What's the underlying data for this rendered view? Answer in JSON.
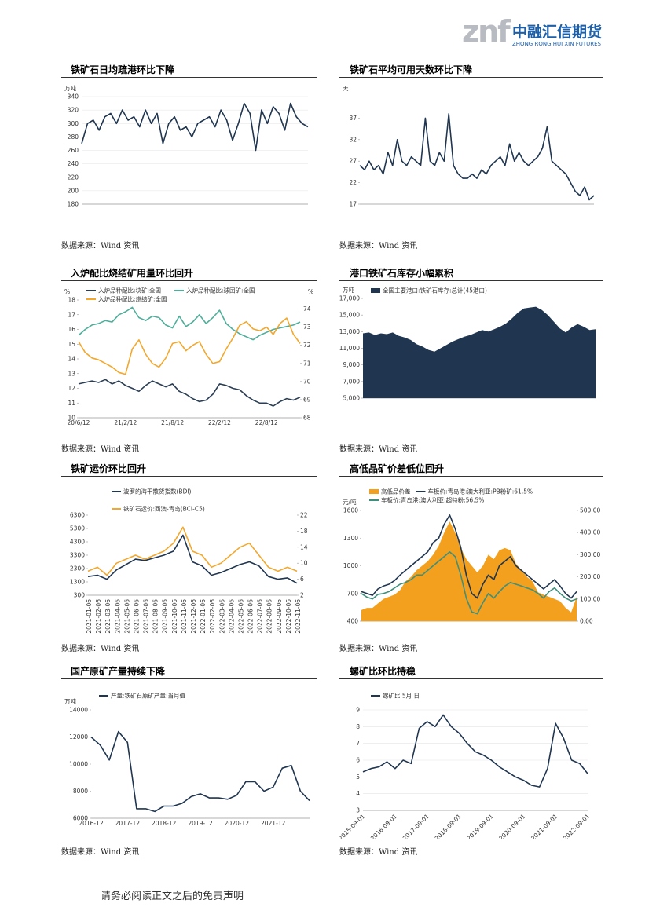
{
  "header": {
    "logo_mark": "znf",
    "company": "中融汇信期货",
    "company_en": "ZHONG RONG HUI XIN FUTURES"
  },
  "sections": [
    {
      "title": "铁矿石日均疏港环比下降",
      "source": "数据来源：Wind 资讯"
    },
    {
      "title": "铁矿石平均可用天数环比下降",
      "source": "数据来源：Wind 资讯"
    },
    {
      "title": "入炉配比烧结矿用量环比回升",
      "source": "数据来源：Wind 资讯"
    },
    {
      "title": "港口铁矿石库存小幅累积",
      "source": "数据来源：Wind 资讯"
    },
    {
      "title": "铁矿运价环比回升",
      "source": "数据来源：Wind 资讯"
    },
    {
      "title": "高低品矿价差低位回升",
      "source": "数据来源：Wind 资讯"
    },
    {
      "title": "国产原矿产量持续下降",
      "source": "数据来源：Wind 资讯"
    },
    {
      "title": "螺矿比环比持稳",
      "source": "数据来源：Wind 资讯"
    }
  ],
  "footer": "请务必阅读正文之后的免责声明",
  "chart_data": [
    {
      "type": "line",
      "unit": "万吨",
      "grid": true,
      "ylim": [
        180,
        340
      ],
      "yticks": [
        180,
        200,
        220,
        240,
        260,
        280,
        300,
        320,
        340
      ],
      "series": [
        {
          "color": "#1f3550",
          "values": [
            270,
            300,
            305,
            290,
            310,
            315,
            300,
            320,
            305,
            310,
            295,
            320,
            300,
            315,
            270,
            300,
            310,
            290,
            295,
            280,
            300,
            305,
            310,
            295,
            320,
            305,
            275,
            300,
            330,
            315,
            260,
            320,
            300,
            325,
            315,
            290,
            330,
            310,
            300,
            295
          ]
        }
      ]
    },
    {
      "type": "line",
      "unit": "天",
      "grid": false,
      "ylim": [
        17,
        42
      ],
      "yticks": [
        17,
        22,
        27,
        32,
        37
      ],
      "series": [
        {
          "color": "#1f3550",
          "values": [
            26,
            25,
            27,
            25,
            26,
            24,
            29,
            26,
            32,
            27,
            26,
            28,
            27,
            26,
            37,
            27,
            26,
            29,
            27,
            38,
            26,
            24,
            23,
            23,
            24,
            23,
            25,
            24,
            26,
            27,
            28,
            26,
            31,
            27,
            29,
            27,
            26,
            27,
            28,
            30,
            35,
            27,
            26,
            25,
            24,
            22,
            20,
            19,
            21,
            18,
            19
          ]
        }
      ]
    },
    {
      "type": "line",
      "unit": "%",
      "unit2": "%",
      "grid": false,
      "ylim": [
        10,
        18
      ],
      "yticks": [
        10,
        11,
        12,
        13,
        14,
        15,
        16,
        17,
        18
      ],
      "y2lim": [
        68,
        74.5
      ],
      "y2ticks": [
        68,
        69,
        70,
        71,
        72,
        73,
        74
      ],
      "categories": [
        "20/6/12",
        null,
        null,
        null,
        null,
        null,
        null,
        "21/2/12",
        null,
        null,
        null,
        null,
        null,
        null,
        "21/8/12",
        null,
        null,
        null,
        null,
        null,
        null,
        "22/2/12",
        null,
        null,
        null,
        null,
        null,
        null,
        "22/8/12",
        null,
        null,
        null,
        null,
        null
      ],
      "series": [
        {
          "name": "入炉品种配比:块矿:全国",
          "color": "#2b3e55",
          "values": [
            12.3,
            12.4,
            12.5,
            12.4,
            12.6,
            12.3,
            12.5,
            12.2,
            12.0,
            11.8,
            12.2,
            12.5,
            12.3,
            12.1,
            12.3,
            11.8,
            11.6,
            11.3,
            11.1,
            11.2,
            11.6,
            12.3,
            12.2,
            12.0,
            11.9,
            11.5,
            11.2,
            11.0,
            11.0,
            10.8,
            11.1,
            11.3,
            11.2,
            11.4
          ]
        },
        {
          "name": "入炉品种配比:球团矿:全国",
          "color": "#4fae9a",
          "values": [
            15.6,
            16.0,
            16.3,
            16.4,
            16.6,
            16.5,
            17.0,
            17.2,
            17.5,
            16.8,
            16.6,
            16.9,
            16.8,
            16.3,
            16.1,
            16.9,
            16.2,
            16.5,
            17.0,
            16.4,
            16.8,
            17.3,
            16.4,
            16.0,
            15.7,
            15.5,
            15.3,
            15.6,
            15.8,
            16.0,
            16.1,
            16.2,
            16.3,
            16.5
          ]
        },
        {
          "name": "入炉品种配比:烧结矿:全国",
          "color": "#f2a72d",
          "axis": "y2",
          "values": [
            72.2,
            71.6,
            71.3,
            71.2,
            71.0,
            70.8,
            70.5,
            70.4,
            71.8,
            72.3,
            71.5,
            71.0,
            70.8,
            71.3,
            72.1,
            72.2,
            71.7,
            72.0,
            72.2,
            71.5,
            71.0,
            71.1,
            71.8,
            72.4,
            73.1,
            73.3,
            72.9,
            72.8,
            73.0,
            72.6,
            73.2,
            73.5,
            72.6,
            72.1
          ]
        }
      ]
    },
    {
      "type": "area",
      "unit": "万吨",
      "grid": false,
      "ylim": [
        5000,
        17000
      ],
      "yticks": [
        {
          "value": 5000,
          "label": "5,000"
        },
        {
          "value": 7000,
          "label": "7,000"
        },
        {
          "value": 9000,
          "label": "9,000"
        },
        {
          "value": 11000,
          "label": "11,000"
        },
        {
          "value": 13000,
          "label": "13,000"
        },
        {
          "value": 15000,
          "label": "15,000"
        },
        {
          "value": 17000,
          "label": "17,000"
        }
      ],
      "series": [
        {
          "name": "全国主要港口:铁矿石库存:总计(45港口)",
          "color": "#1f3550",
          "values": [
            12800,
            12900,
            12600,
            12800,
            12700,
            12900,
            12500,
            12300,
            12000,
            11500,
            11200,
            10800,
            10600,
            11000,
            11400,
            11800,
            12100,
            12400,
            12600,
            12900,
            13200,
            13000,
            13300,
            13600,
            14000,
            14600,
            15300,
            15800,
            15900,
            16000,
            15600,
            15000,
            14200,
            13400,
            12900,
            13500,
            13900,
            13600,
            13200,
            13300
          ]
        }
      ]
    },
    {
      "type": "line",
      "grid": false,
      "ylim": [
        300,
        6300
      ],
      "yticks": [
        300,
        1300,
        2300,
        3300,
        4300,
        5300,
        6300
      ],
      "y2lim": [
        2,
        22
      ],
      "y2ticks": [
        2,
        6,
        10,
        14,
        18,
        22
      ],
      "categories": [
        "2021-01-06",
        "2021-02-06",
        "2021-03-06",
        "2021-04-06",
        "2021-05-06",
        "2021-06-06",
        "2021-07-06",
        "2021-08-06",
        "2021-09-06",
        "2021-10-06",
        "2021-11-06",
        "2021-12-06",
        "2022-01-06",
        "2022-02-06",
        "2022-03-06",
        "2022-04-06",
        "2022-05-06",
        "2022-06-06",
        "2022-07-06",
        "2022-08-06",
        "2022-09-06",
        "2022-10-06",
        "2022-11-06"
      ],
      "series": [
        {
          "name": "波罗的海干散货指数(BDI)",
          "color": "#1f3550",
          "values": [
            1700,
            1800,
            1500,
            2200,
            2600,
            3000,
            2900,
            3100,
            3300,
            3600,
            4800,
            2800,
            2500,
            1800,
            2000,
            2300,
            2600,
            2800,
            2500,
            1700,
            1500,
            1600,
            1200
          ]
        },
        {
          "name": "铁矿石运价:西澳-青岛(BCI-C5)",
          "color": "#f2a72d",
          "axis": "y2",
          "values": [
            8,
            9,
            7,
            10,
            11,
            12,
            11,
            12,
            13,
            15,
            19,
            13,
            12,
            9,
            10,
            12,
            14,
            15,
            12,
            9,
            8,
            9,
            8
          ]
        }
      ]
    },
    {
      "type": "line",
      "unit": "元/吨",
      "grid": false,
      "ylim": [
        400,
        1600
      ],
      "yticks": [
        400,
        700,
        1000,
        1300,
        1600
      ],
      "y2lim": [
        0,
        500
      ],
      "y2ticks": [
        {
          "value": 0,
          "label": "0.00"
        },
        {
          "value": 100,
          "label": "100.00"
        },
        {
          "value": 200,
          "label": "200.00"
        },
        {
          "value": 300,
          "label": "300.00"
        },
        {
          "value": 400,
          "label": "400.00"
        },
        {
          "value": 500,
          "label": "500.00"
        }
      ],
      "series": [
        {
          "name": "高低品价差",
          "color": "#f2a01d",
          "axis": "y2",
          "type": "area",
          "values": [
            50,
            60,
            60,
            80,
            100,
            110,
            120,
            140,
            180,
            200,
            230,
            250,
            270,
            300,
            340,
            400,
            450,
            400,
            330,
            280,
            250,
            220,
            250,
            300,
            280,
            320,
            330,
            320,
            260,
            230,
            200,
            180,
            130,
            120,
            110,
            100,
            90,
            60,
            40,
            110
          ]
        },
        {
          "name": "车板价:青岛港:澳大利亚:PB粉矿:61.5%",
          "color": "#1f3550",
          "values": [
            720,
            700,
            680,
            750,
            780,
            800,
            840,
            900,
            950,
            1000,
            1050,
            1100,
            1150,
            1250,
            1300,
            1450,
            1550,
            1400,
            1200,
            900,
            700,
            650,
            800,
            900,
            850,
            1000,
            1050,
            1100,
            1000,
            950,
            900,
            850,
            800,
            750,
            800,
            850,
            780,
            700,
            650,
            720
          ]
        },
        {
          "name": "车板价:青岛港:澳大利亚:超特粉:56.5%",
          "color": "#3e8f7c",
          "values": [
            700,
            660,
            640,
            690,
            700,
            720,
            760,
            800,
            820,
            850,
            900,
            900,
            950,
            1000,
            1050,
            1100,
            1150,
            1100,
            900,
            650,
            500,
            480,
            600,
            700,
            650,
            720,
            780,
            820,
            800,
            780,
            760,
            740,
            700,
            650,
            720,
            760,
            700,
            650,
            620,
            640
          ]
        }
      ]
    },
    {
      "type": "line",
      "unit": "万吨",
      "grid": false,
      "ylim": [
        6000,
        14000
      ],
      "yticks": [
        6000,
        8000,
        10000,
        12000,
        14000
      ],
      "categories": [
        "2016-12",
        null,
        null,
        null,
        "2017-12",
        null,
        null,
        null,
        "2018-12",
        null,
        null,
        null,
        "2019-12",
        null,
        null,
        null,
        "2020-12",
        null,
        null,
        null,
        "2021-12",
        null,
        null,
        null,
        null
      ],
      "series": [
        {
          "name": "产量:铁矿石原矿产量:当月值",
          "color": "#1f3550",
          "values": [
            12000,
            11400,
            10300,
            12400,
            11600,
            6700,
            6700,
            6500,
            6900,
            6900,
            7100,
            7600,
            7800,
            7500,
            7500,
            7400,
            7700,
            8700,
            8700,
            8000,
            8300,
            9700,
            9900,
            8000,
            7300
          ]
        }
      ]
    },
    {
      "type": "line",
      "grid": true,
      "ylim": [
        3,
        9
      ],
      "yticks": [
        3,
        4,
        5,
        6,
        7,
        8,
        9
      ],
      "categories": [
        "2015-09-01",
        null,
        null,
        null,
        "2016-09-01",
        null,
        null,
        null,
        "2017-09-01",
        null,
        null,
        null,
        "2018-09-01",
        null,
        null,
        null,
        "2019-09-01",
        null,
        null,
        null,
        "2020-09-01",
        null,
        null,
        null,
        "2021-09-01",
        null,
        null,
        null,
        "2022-09-01"
      ],
      "series": [
        {
          "name": "螺矿比 5月 日",
          "color": "#1f3550",
          "values": [
            5.3,
            5.5,
            5.6,
            5.9,
            5.5,
            6.0,
            5.8,
            7.9,
            8.3,
            8.0,
            8.7,
            8.0,
            7.6,
            7.0,
            6.5,
            6.3,
            6.0,
            5.6,
            5.3,
            5.0,
            4.8,
            4.5,
            4.4,
            5.5,
            8.2,
            7.3,
            6.0,
            5.8,
            5.2
          ]
        }
      ]
    }
  ]
}
